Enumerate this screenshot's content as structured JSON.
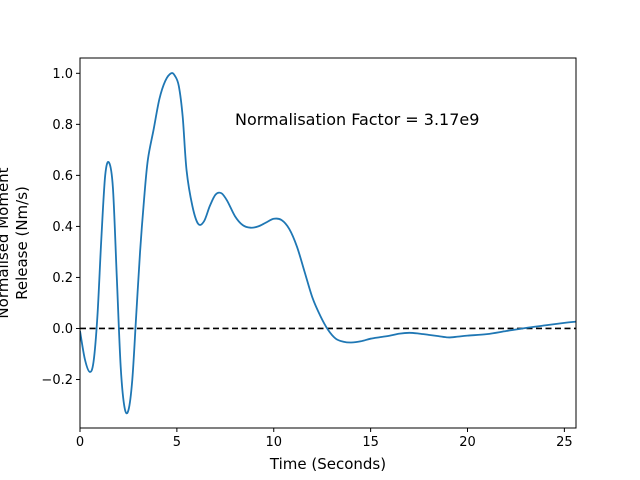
{
  "chart_data": {
    "type": "line",
    "title": "",
    "xlabel": "Time (Seconds)",
    "ylabel_lines": [
      "Normalised Moment",
      "Release (Nm/s)"
    ],
    "xlim": [
      0,
      25.6
    ],
    "ylim": [
      -0.39,
      1.06
    ],
    "xticks": [
      0,
      5,
      10,
      15,
      20,
      25
    ],
    "xtick_labels": [
      "0",
      "5",
      "10",
      "15",
      "20",
      "25"
    ],
    "yticks": [
      -0.2,
      0.0,
      0.2,
      0.4,
      0.6,
      0.8,
      1.0
    ],
    "ytick_labels": [
      "−0.2",
      "0.0",
      "0.2",
      "0.4",
      "0.6",
      "0.8",
      "1.0"
    ],
    "grid": false,
    "annotation": "Normalisation Factor = 3.17e9",
    "reference_line": {
      "y": 0,
      "style": "dashed",
      "color": "#000000"
    },
    "series": [
      {
        "color": "#1f77b4",
        "x": [
          0,
          0.25,
          0.5,
          0.7,
          0.9,
          1.1,
          1.3,
          1.5,
          1.7,
          1.9,
          2.1,
          2.3,
          2.5,
          2.7,
          2.9,
          3.1,
          3.3,
          3.5,
          3.8,
          4.1,
          4.4,
          4.7,
          4.9,
          5.1,
          5.3,
          5.5,
          5.8,
          6.1,
          6.4,
          6.7,
          7.0,
          7.3,
          7.6,
          8.0,
          8.4,
          8.8,
          9.2,
          9.6,
          10.0,
          10.4,
          10.8,
          11.2,
          11.6,
          12.0,
          12.4,
          12.8,
          13.2,
          13.6,
          14.0,
          14.5,
          15.0,
          15.5,
          16.0,
          16.5,
          17.0,
          17.5,
          18.0,
          18.5,
          19.0,
          19.5,
          20.0,
          21.0,
          22.0,
          23.0,
          24.0,
          25.0,
          25.6
        ],
        "y": [
          -0.01,
          -0.12,
          -0.17,
          -0.13,
          0.05,
          0.35,
          0.6,
          0.65,
          0.55,
          0.2,
          -0.15,
          -0.31,
          -0.32,
          -0.2,
          0.05,
          0.3,
          0.5,
          0.66,
          0.78,
          0.9,
          0.97,
          1.0,
          0.99,
          0.95,
          0.83,
          0.62,
          0.48,
          0.41,
          0.42,
          0.48,
          0.525,
          0.53,
          0.5,
          0.44,
          0.405,
          0.395,
          0.4,
          0.415,
          0.43,
          0.425,
          0.39,
          0.32,
          0.22,
          0.12,
          0.05,
          -0.005,
          -0.04,
          -0.052,
          -0.055,
          -0.05,
          -0.04,
          -0.034,
          -0.028,
          -0.02,
          -0.017,
          -0.02,
          -0.025,
          -0.03,
          -0.035,
          -0.032,
          -0.028,
          -0.022,
          -0.01,
          0.002,
          0.012,
          0.022,
          0.027
        ]
      }
    ]
  }
}
